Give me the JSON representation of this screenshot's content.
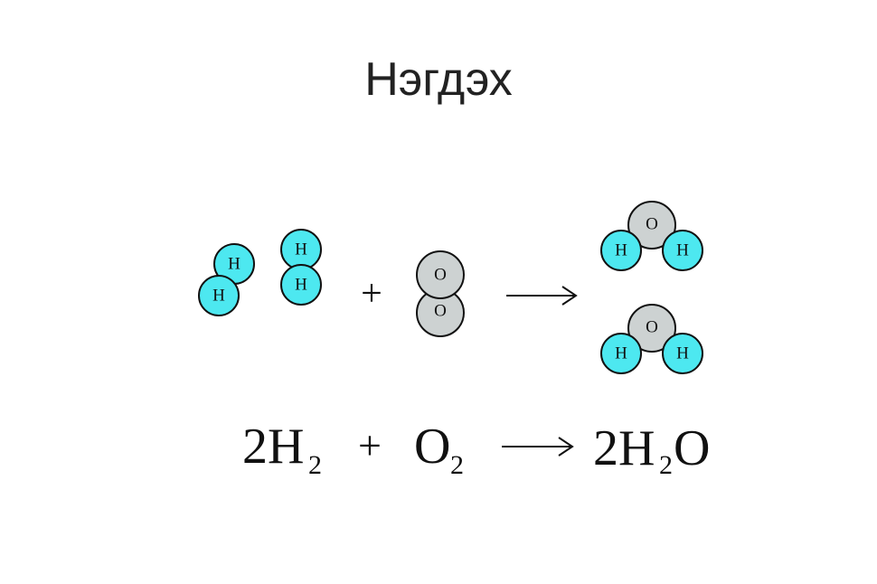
{
  "title": "Нэгдэх",
  "colors": {
    "hydrogen": "#4de8f0",
    "oxygen": "#cdd2d2",
    "stroke": "#111111"
  },
  "molecules": {
    "hydrogen_1": [
      "H",
      "H"
    ],
    "hydrogen_2": [
      "H",
      "H"
    ],
    "oxygen": [
      "O",
      "O"
    ],
    "water_1": [
      "O",
      "H",
      "H"
    ],
    "water_2": [
      "O",
      "H",
      "H"
    ]
  },
  "symbols": {
    "plus": "+",
    "arrow": "⟶"
  },
  "equation": {
    "h2_coef": "2H",
    "h2_sub": "2",
    "plus": "+",
    "o2_symbol": "O",
    "o2_sub": "2",
    "product_coef": "2H",
    "product_sub": "2",
    "product_tail": "O"
  }
}
